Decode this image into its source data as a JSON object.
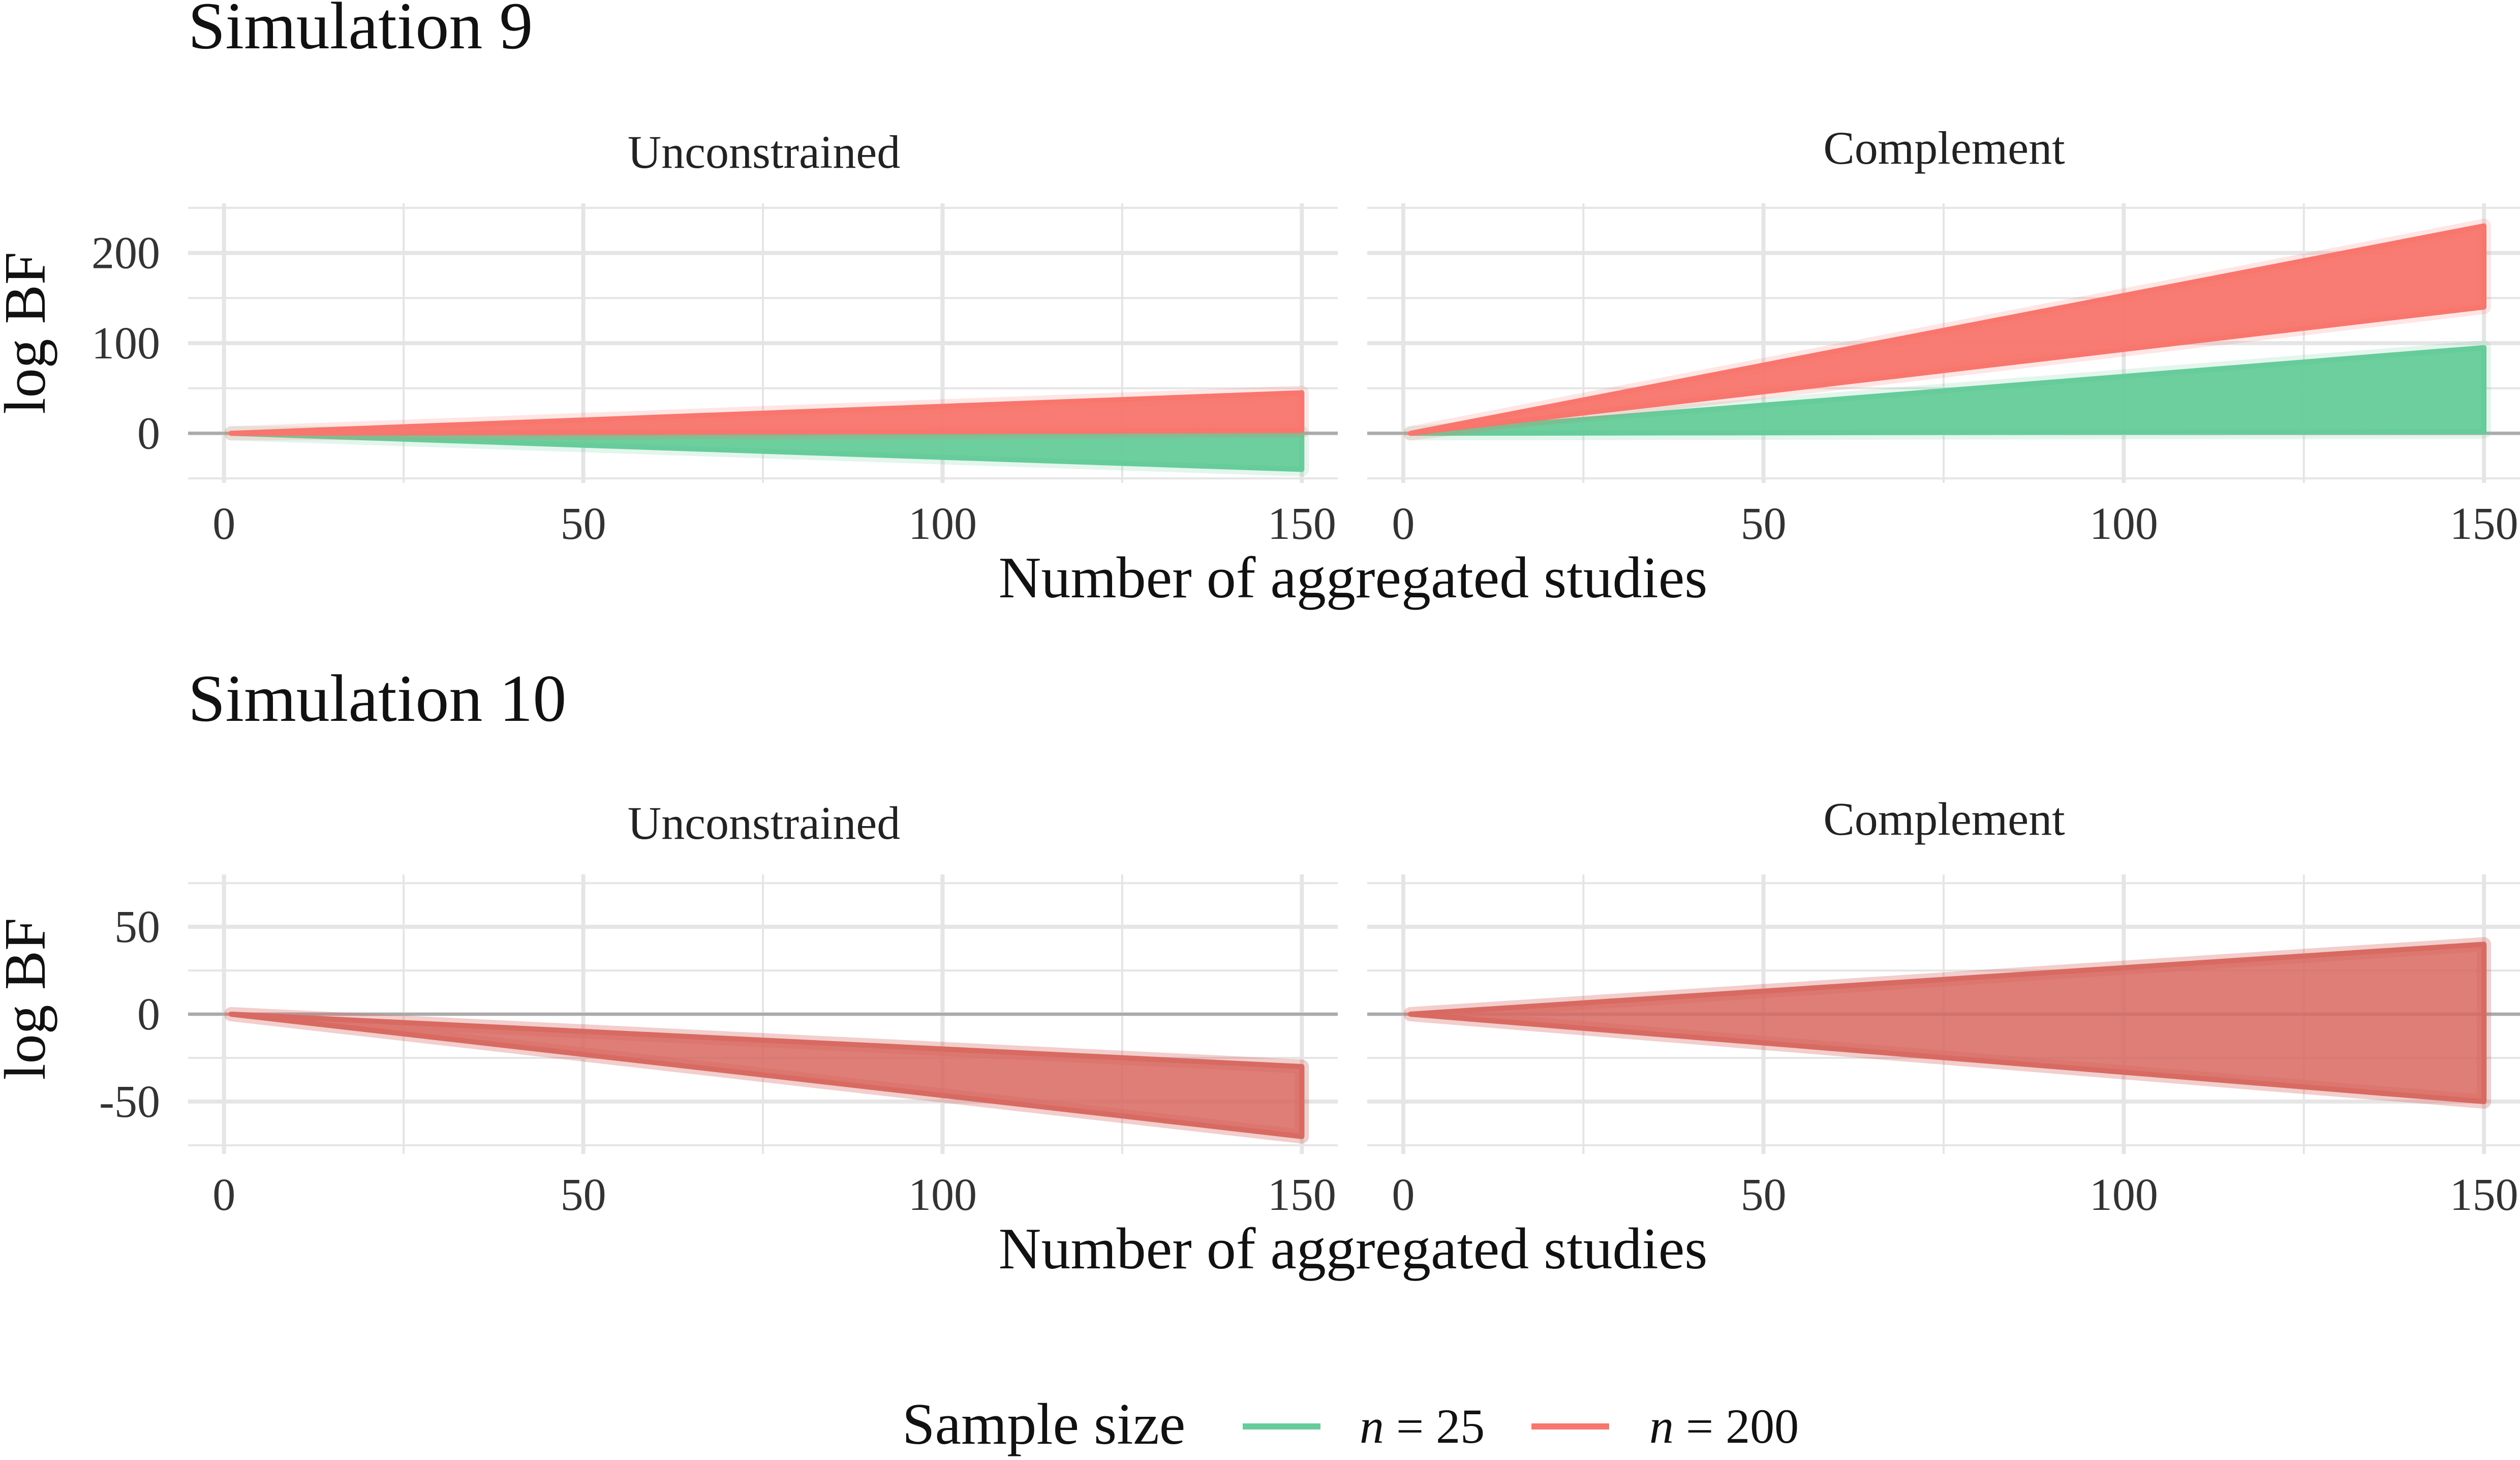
{
  "legend": {
    "title": "Sample size",
    "items": [
      {
        "name_var": "n",
        "name_rest": " = 25",
        "color": "#66CC99"
      },
      {
        "name_var": "n",
        "name_rest": " = 200",
        "color": "#F8766D"
      }
    ]
  },
  "colors": {
    "n25": "#66CC99",
    "n200": "#F8766D",
    "overlap": "#D86A62",
    "grid": "#E5E5E5",
    "zero_line": "#AAAAAA"
  },
  "chart_data": [
    {
      "type": "line",
      "title": "Simulation 9",
      "xlabel": "Number of aggregated studies",
      "ylabel": "log BF",
      "xlim": [
        -5,
        155
      ],
      "ylim": [
        -55,
        255
      ],
      "xticks": [
        0,
        50,
        100,
        150
      ],
      "yticks": [
        0,
        100,
        200
      ],
      "grid": true,
      "panels": [
        {
          "name": "Unconstrained",
          "series": [
            {
              "name": "n = 25",
              "x": [
                1,
                150
              ],
              "upper": [
                0,
                0
              ],
              "lower": [
                0,
                -40
              ]
            },
            {
              "name": "n = 200",
              "x": [
                1,
                150
              ],
              "upper": [
                0,
                45
              ],
              "lower": [
                0,
                3
              ]
            }
          ]
        },
        {
          "name": "Complement",
          "series": [
            {
              "name": "n = 25",
              "x": [
                1,
                150
              ],
              "upper": [
                0,
                95
              ],
              "lower": [
                0,
                2
              ]
            },
            {
              "name": "n = 200",
              "x": [
                1,
                150
              ],
              "upper": [
                0,
                230
              ],
              "lower": [
                0,
                140
              ]
            }
          ]
        }
      ]
    },
    {
      "type": "line",
      "title": "Simulation 10",
      "xlabel": "Number of aggregated studies",
      "ylabel": "log BF",
      "xlim": [
        -5,
        155
      ],
      "ylim": [
        -80,
        80
      ],
      "xticks": [
        0,
        50,
        100,
        150
      ],
      "yticks": [
        -50,
        0,
        50
      ],
      "grid": true,
      "panels": [
        {
          "name": "Unconstrained",
          "series": [
            {
              "name": "n = 25",
              "x": [
                1,
                150
              ],
              "upper": [
                0,
                -30
              ],
              "lower": [
                0,
                -70
              ]
            },
            {
              "name": "n = 200",
              "x": [
                1,
                150
              ],
              "upper": [
                0,
                -30
              ],
              "lower": [
                0,
                -70
              ]
            }
          ]
        },
        {
          "name": "Complement",
          "series": [
            {
              "name": "n = 25",
              "x": [
                1,
                150
              ],
              "upper": [
                0,
                40
              ],
              "lower": [
                0,
                -50
              ]
            },
            {
              "name": "n = 200",
              "x": [
                1,
                150
              ],
              "upper": [
                0,
                40
              ],
              "lower": [
                0,
                -50
              ]
            }
          ]
        }
      ]
    }
  ]
}
